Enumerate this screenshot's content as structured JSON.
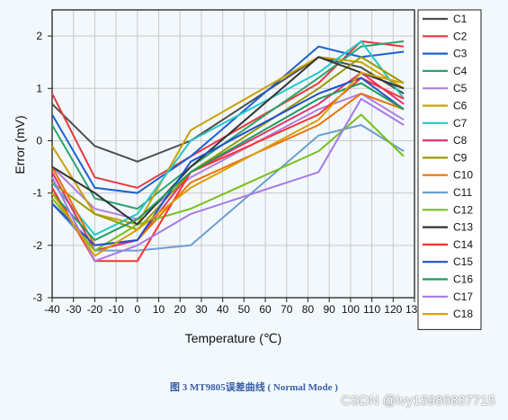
{
  "chart_data": {
    "type": "line",
    "xlabel": "Temperature (℃)",
    "ylabel": "Error (mV)",
    "xlim": [
      -40,
      130
    ],
    "ylim": [
      -3,
      2.5
    ],
    "x_ticks": [
      -40,
      -30,
      -20,
      -10,
      0,
      10,
      20,
      30,
      40,
      50,
      60,
      70,
      80,
      90,
      100,
      110,
      120,
      130
    ],
    "x_tick_labels": [
      "-40",
      "-30",
      "-20",
      "-10",
      "0",
      "10",
      "20",
      "30",
      "40",
      "50",
      "60",
      "70",
      "80",
      "90",
      "100",
      "110",
      "120",
      "130"
    ],
    "y_ticks": [
      -3,
      -2,
      -1,
      0,
      1,
      2
    ],
    "y_tick_labels": [
      "-3",
      "-2",
      "-1",
      "0",
      "1",
      "2"
    ],
    "grid": true,
    "legend_position": "right",
    "x": [
      -40,
      -20,
      0,
      25,
      85,
      105,
      125
    ],
    "series": [
      {
        "name": "C1",
        "color": "#4d4d4d",
        "values": [
          0.7,
          -0.1,
          -0.4,
          0.0,
          1.6,
          1.4,
          0.9
        ]
      },
      {
        "name": "C2",
        "color": "#e8383d",
        "values": [
          0.9,
          -0.7,
          -0.9,
          -0.3,
          1.1,
          1.9,
          1.8
        ]
      },
      {
        "name": "C3",
        "color": "#1f5fcf",
        "values": [
          0.5,
          -0.9,
          -1.0,
          -0.3,
          1.8,
          1.6,
          1.7
        ]
      },
      {
        "name": "C4",
        "color": "#2ca46a",
        "values": [
          0.3,
          -1.1,
          -1.3,
          -0.5,
          1.2,
          1.8,
          1.9
        ]
      },
      {
        "name": "C5",
        "color": "#b07fe0",
        "values": [
          -0.5,
          -1.3,
          -1.5,
          -0.7,
          0.6,
          0.9,
          0.4
        ]
      },
      {
        "name": "C6",
        "color": "#c8a200",
        "values": [
          -0.1,
          -1.4,
          -1.6,
          0.2,
          1.6,
          1.5,
          1.0
        ]
      },
      {
        "name": "C7",
        "color": "#25c8c8",
        "values": [
          -0.8,
          -1.8,
          -1.4,
          0.0,
          1.3,
          1.9,
          0.8
        ]
      },
      {
        "name": "C8",
        "color": "#e0356e",
        "values": [
          -0.6,
          -2.1,
          -1.9,
          -0.6,
          0.7,
          1.3,
          0.7
        ]
      },
      {
        "name": "C9",
        "color": "#9a9a00",
        "values": [
          -0.8,
          -1.4,
          -1.7,
          -0.6,
          1.0,
          1.6,
          1.1
        ]
      },
      {
        "name": "C10",
        "color": "#f07000",
        "values": [
          -0.5,
          -2.0,
          -1.9,
          -0.8,
          0.3,
          0.9,
          0.6
        ]
      },
      {
        "name": "C11",
        "color": "#6a9fd0",
        "values": [
          -1.2,
          -2.1,
          -2.1,
          -2.0,
          0.1,
          0.3,
          -0.2
        ]
      },
      {
        "name": "C12",
        "color": "#77c01a",
        "values": [
          -1.1,
          -2.1,
          -1.6,
          -1.3,
          -0.2,
          0.5,
          -0.3
        ]
      },
      {
        "name": "C13",
        "color": "#333333",
        "values": [
          -0.5,
          -1.0,
          -1.6,
          -0.5,
          1.6,
          1.3,
          1.0
        ]
      },
      {
        "name": "C14",
        "color": "#ff3030",
        "values": [
          -0.9,
          -2.3,
          -2.3,
          -0.6,
          0.5,
          1.2,
          0.8
        ]
      },
      {
        "name": "C15",
        "color": "#1f4fd0",
        "values": [
          -1.2,
          -2.0,
          -1.9,
          -0.4,
          0.9,
          1.2,
          0.6
        ]
      },
      {
        "name": "C16",
        "color": "#1b9e5a",
        "values": [
          -1.0,
          -1.9,
          -1.5,
          -0.6,
          0.8,
          1.1,
          0.6
        ]
      },
      {
        "name": "C17",
        "color": "#a57ae8",
        "values": [
          -0.7,
          -2.3,
          -2.0,
          -1.4,
          -0.6,
          0.8,
          0.3
        ]
      },
      {
        "name": "C18",
        "color": "#d7a000",
        "values": [
          -1.0,
          -2.2,
          -1.7,
          -0.9,
          0.4,
          1.3,
          1.1
        ]
      }
    ]
  },
  "caption": "图 3 MT9805误差曲线 ( Normal Mode )",
  "watermark": "CSDN @ivy15986837715"
}
